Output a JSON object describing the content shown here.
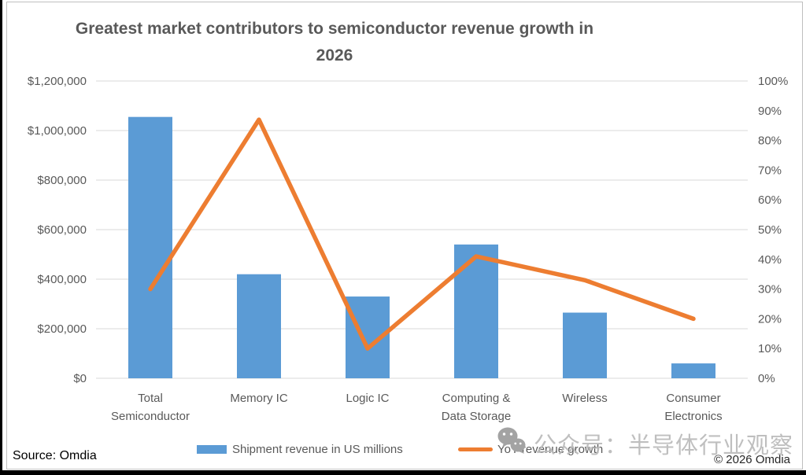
{
  "title": {
    "lines": [
      "Greatest market contributors to semiconductor revenue growth in",
      "2026"
    ]
  },
  "chart_data": {
    "type": "combo (bar + line)",
    "title": "Greatest market contributors to semiconductor revenue growth in 2026",
    "categories": [
      "Total Semiconductor",
      "Memory IC",
      "Logic IC",
      "Computing & Data Storage",
      "Wireless",
      "Consumer Electronics"
    ],
    "series": [
      {
        "name": "Shipment revenue in US millions",
        "type": "bar",
        "axis": "left",
        "color": "#5B9BD5",
        "values": [
          1055000,
          420000,
          330000,
          540000,
          265000,
          60000
        ]
      },
      {
        "name": "YoY revenue growth",
        "type": "line",
        "axis": "right",
        "color": "#ED7D31",
        "unit": "%",
        "values": [
          30,
          87,
          10,
          41,
          33,
          20
        ]
      }
    ],
    "left_axis": {
      "min": 0,
      "max": 1200000,
      "step": 200000,
      "tick_labels_top_to_bottom": [
        "$1,200,000",
        "$1,000,000",
        "$800,000",
        "$600,000",
        "$400,000",
        "$200,000",
        "$0"
      ]
    },
    "right_axis": {
      "min": 0,
      "max": 100,
      "step": 10,
      "tick_labels_top_to_bottom": [
        "100%",
        "90%",
        "80%",
        "70%",
        "60%",
        "50%",
        "40%",
        "30%",
        "20%",
        "10%",
        "0%"
      ]
    },
    "grid": true,
    "grid_color": "#D9D9D9",
    "text_color": "#595959",
    "legend_position": "bottom"
  },
  "legend": {
    "items": [
      {
        "label": "Shipment revenue in US millions",
        "color": "#5B9BD5",
        "marker": "bar-swatch"
      },
      {
        "label": "YoY revenue growth",
        "color": "#ED7D31",
        "marker": "line-swatch"
      }
    ]
  },
  "watermark": {
    "icon": "wechat-icon",
    "text": "公众号：半导体行业观察"
  },
  "footer": {
    "source": "Source: Omdia",
    "copyright": "© 2026 Omdia"
  }
}
